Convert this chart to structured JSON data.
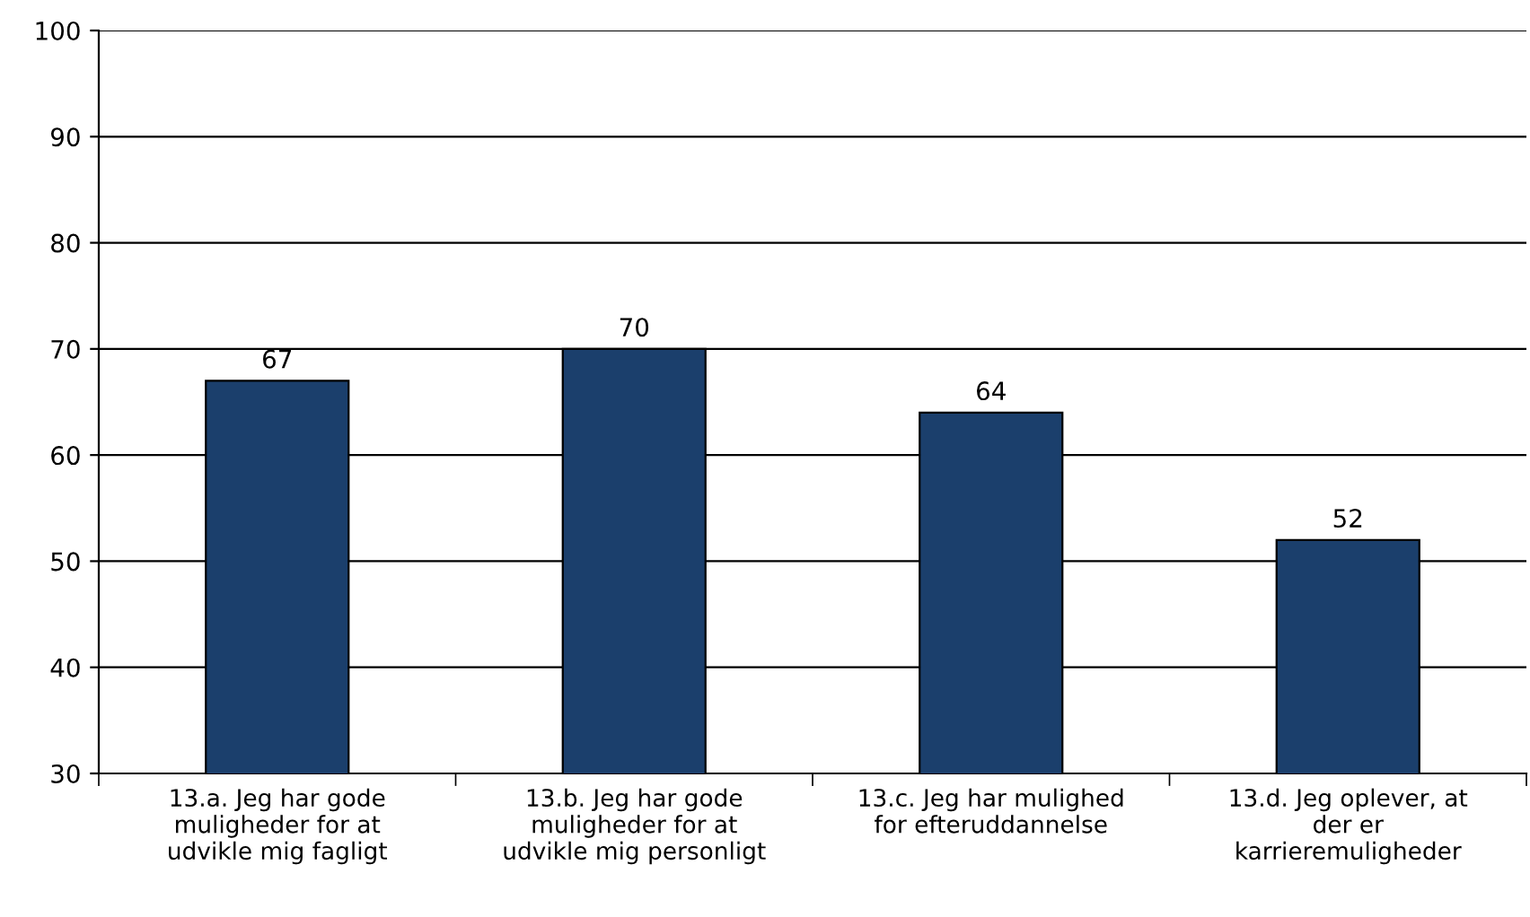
{
  "chart_data": {
    "type": "bar",
    "categories": [
      "13.a. Jeg har gode\nmuligheder for at\nudvikle mig fagligt",
      "13.b. Jeg har gode\nmuligheder for at\nudvikle mig personligt",
      "13.c. Jeg har mulighed\nfor efteruddannelse",
      "13.d. Jeg oplever, at\nder er\nkarrieremuligheder"
    ],
    "values": [
      67,
      70,
      64,
      52
    ],
    "color": "#1b3f6c",
    "ylim": [
      30,
      100
    ],
    "yticks": [
      30,
      40,
      50,
      60,
      70,
      80,
      90,
      100
    ],
    "grid": "y",
    "data_labels": true
  }
}
